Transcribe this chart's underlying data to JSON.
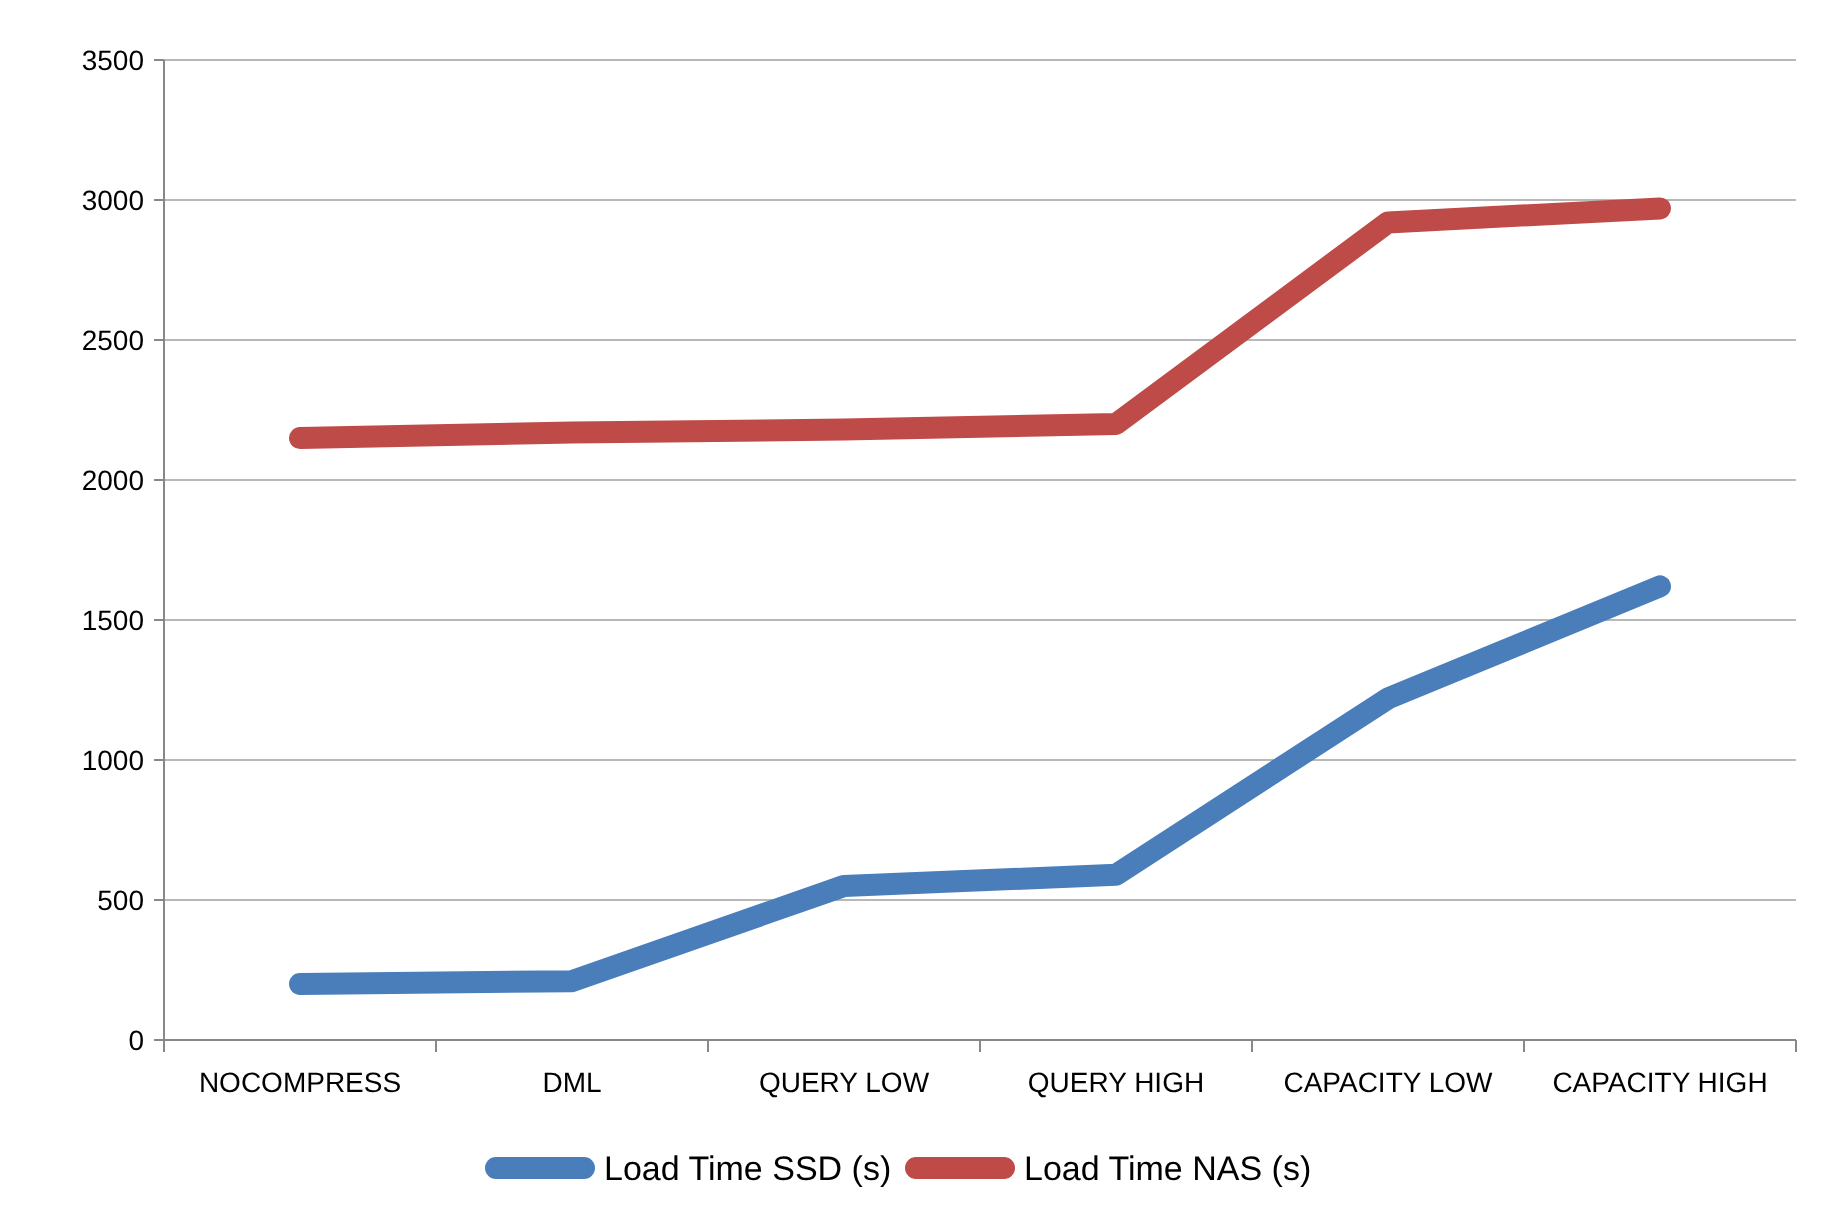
{
  "chart_data": {
    "type": "line",
    "categories": [
      "NOCOMPRESS",
      "DML",
      "QUERY LOW",
      "QUERY HIGH",
      "CAPACITY LOW",
      "CAPACITY HIGH"
    ],
    "series": [
      {
        "name": "Load Time SSD (s)",
        "color": "#4a7ebb",
        "values": [
          200,
          210,
          550,
          590,
          1220,
          1620
        ]
      },
      {
        "name": "Load Time NAS (s)",
        "color": "#be4b48",
        "values": [
          2150,
          2170,
          2180,
          2200,
          2920,
          2970
        ]
      }
    ],
    "ylim": [
      0,
      3500
    ],
    "yticks": [
      0,
      500,
      1000,
      1500,
      2000,
      2500,
      3000,
      3500
    ],
    "grid": "y",
    "legend": "bottom",
    "marker": "none",
    "line_style": "solid"
  }
}
